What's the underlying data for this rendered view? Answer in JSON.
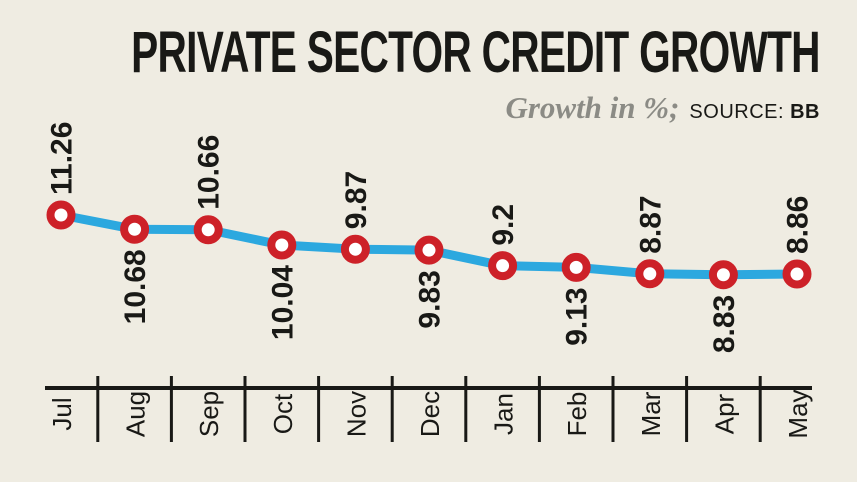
{
  "title": "PRIVATE SECTOR CREDIT GROWTH",
  "subtitle": {
    "unit_label": "Growth in %;",
    "source_label": "SOURCE:",
    "source_value": "BB"
  },
  "colors": {
    "background": "#EFECE2",
    "line": "#2CA8DF",
    "marker_ring": "#CD2128",
    "marker_fill": "#FFFFFF",
    "axis": "#191916",
    "label_text": "#191916",
    "subtitle_gray": "#8B8B85"
  },
  "chart_data": {
    "type": "line",
    "title": "PRIVATE SECTOR CREDIT GROWTH",
    "ylabel": "Growth in %",
    "source": "BB",
    "categories": [
      "Jul",
      "Aug",
      "Sep",
      "Oct",
      "Nov",
      "Dec",
      "Jan",
      "Feb",
      "Mar",
      "Apr",
      "May"
    ],
    "series": [
      {
        "name": "Private sector credit growth (%)",
        "values": [
          11.26,
          10.68,
          10.66,
          10.04,
          9.87,
          9.83,
          9.2,
          9.13,
          8.87,
          8.83,
          8.86
        ]
      }
    ],
    "data_labels": [
      "11.26",
      "10.68",
      "10.66",
      "10.04",
      "9.87",
      "9.83",
      "9.2",
      "9.13",
      "8.87",
      "8.83",
      "8.86"
    ],
    "legend": "none",
    "grid": false,
    "y_axis_visible": false,
    "x_axis_position": "bottom"
  }
}
